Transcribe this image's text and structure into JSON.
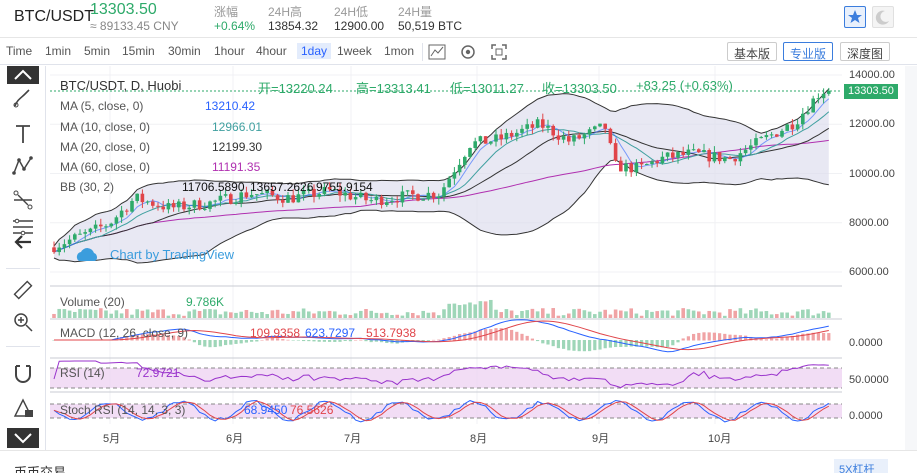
{
  "header": {
    "pair": "BTC/USDT",
    "price": "13303.50",
    "price_cny": "≈ 89133.45 CNY",
    "stats": [
      {
        "label": "涨幅",
        "value": "+0.64%"
      },
      {
        "label": "24H高",
        "value": "13854.32"
      },
      {
        "label": "24H低",
        "value": "12900.00"
      },
      {
        "label": "24H量",
        "value": "50,519 BTC"
      }
    ]
  },
  "toolbar": {
    "timeframes": [
      "Time",
      "1min",
      "5min",
      "15min",
      "30min",
      "1hour",
      "4hour",
      "1day",
      "1week",
      "1mon"
    ],
    "active_timeframe": "1day",
    "view_buttons": [
      "基本版",
      "专业版",
      "深度图"
    ],
    "active_view": "专业版"
  },
  "legend": {
    "title": "BTC/USDT, D, Huobi",
    "open": "开=13220.24",
    "high": "高=13313.41",
    "low": "低=13011.27",
    "close": "收=13303.50",
    "change": "+83.25 (+0.63%)",
    "ma5": {
      "name": "MA (5, close, 0)",
      "value": "13210.42"
    },
    "ma10": {
      "name": "MA (10, close, 0)",
      "value": "12966.01"
    },
    "ma20": {
      "name": "MA (20, close, 0)",
      "value": "12199.30"
    },
    "ma60": {
      "name": "MA (60, close, 0)",
      "value": "11191.35"
    },
    "bb": {
      "name": "BB (30, 2)",
      "v1": "11706.5890",
      "v2": "13657.2626",
      "v3": "9755.9154"
    },
    "volume": {
      "name": "Volume (20)",
      "value": "9.786K"
    },
    "macd": {
      "name": "MACD (12, 26, close, 9)",
      "v1": "109.9358",
      "v2": "623.7297",
      "v3": "513.7938"
    },
    "rsi": {
      "name": "RSI (14)",
      "value": "72.9721"
    },
    "stoch": {
      "name": "Stoch RSI (14, 14, 3, 3)",
      "v1": "68.9450",
      "v2": "76.5626"
    },
    "watermark": "Chart by TradingView"
  },
  "price_axis": {
    "labels": [
      "14000.00",
      "12000.00",
      "10000.00",
      "8000.00",
      "6000.00"
    ],
    "last": "13303.50",
    "macd_zero": "0.0000",
    "rsi_label": "50.0000",
    "stoch_zero": "0.0000"
  },
  "time_axis": [
    "5月",
    "6月",
    "7月",
    "8月",
    "9月",
    "10月"
  ],
  "footer": {
    "tab": "币币交易",
    "right": "5X杠杆"
  },
  "colors": {
    "up": "#2eaa6a",
    "down": "#e0454a",
    "ma5": "#2962ff",
    "ma10": "#40a0a0",
    "ma20": "#333333",
    "ma60": "#b030b0",
    "bb_fill": "#dcdcec",
    "accent": "#3b7ddd"
  },
  "chart_data": {
    "type": "candlestick",
    "title": "BTC/USDT, D, Huobi",
    "ylim": [
      5500,
      14200
    ],
    "x": [
      "5月",
      "6月",
      "7月",
      "8月",
      "9月",
      "10月"
    ],
    "closes_monthly_approx": [
      7800,
      9000,
      9300,
      11500,
      10500,
      13300
    ],
    "last": {
      "open": 13220.24,
      "high": 13313.41,
      "low": 13011.27,
      "close": 13303.5
    }
  }
}
